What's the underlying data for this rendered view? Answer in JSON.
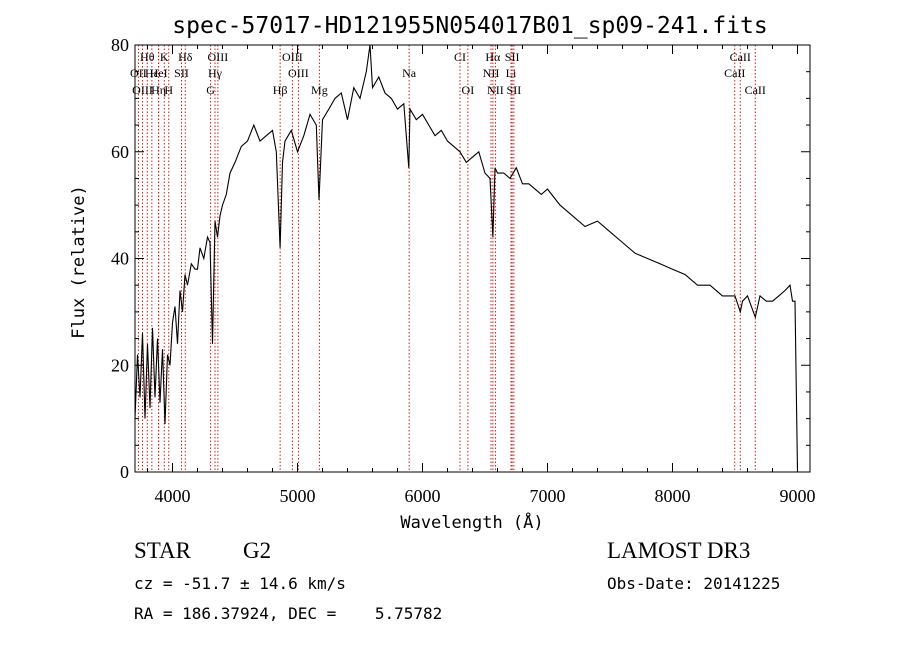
{
  "chart_data": {
    "type": "line",
    "title": "spec-57017-HD121955N054017B01_sp09-241.fits",
    "xlabel": "Wavelength (Å)",
    "ylabel": "Flux (relative)",
    "xlim": [
      3700,
      9100
    ],
    "ylim": [
      0,
      80
    ],
    "x_ticks": [
      4000,
      5000,
      6000,
      7000,
      8000,
      9000
    ],
    "y_ticks": [
      0,
      20,
      40,
      60,
      80
    ],
    "grid": false,
    "series": [
      {
        "name": "flux",
        "x": [
          3700,
          3720,
          3740,
          3760,
          3780,
          3800,
          3820,
          3840,
          3860,
          3880,
          3900,
          3920,
          3940,
          3960,
          3980,
          4000,
          4020,
          4040,
          4060,
          4080,
          4100,
          4120,
          4150,
          4180,
          4200,
          4220,
          4250,
          4280,
          4300,
          4320,
          4340,
          4360,
          4380,
          4400,
          4430,
          4460,
          4500,
          4550,
          4600,
          4650,
          4700,
          4750,
          4800,
          4830,
          4861,
          4880,
          4900,
          4950,
          5000,
          5050,
          5100,
          5150,
          5172,
          5200,
          5250,
          5300,
          5350,
          5400,
          5450,
          5500,
          5550,
          5580,
          5600,
          5650,
          5700,
          5750,
          5800,
          5850,
          5890,
          5900,
          5950,
          6000,
          6050,
          6100,
          6150,
          6200,
          6250,
          6300,
          6350,
          6400,
          6450,
          6500,
          6540,
          6563,
          6580,
          6600,
          6650,
          6700,
          6750,
          6800,
          6850,
          6900,
          6950,
          7000,
          7100,
          7200,
          7300,
          7400,
          7500,
          7600,
          7700,
          7800,
          7900,
          8000,
          8100,
          8200,
          8300,
          8400,
          8500,
          8542,
          8560,
          8600,
          8662,
          8700,
          8750,
          8800,
          8850,
          8900,
          8940,
          8960,
          8980,
          9000
        ],
        "y": [
          10,
          22,
          14,
          26,
          10,
          24,
          12,
          27,
          14,
          25,
          13,
          23,
          9,
          22,
          20,
          28,
          31,
          24,
          34,
          30,
          37,
          35,
          39,
          38,
          38,
          42,
          40,
          44,
          43,
          24,
          47,
          44,
          48,
          50,
          52,
          56,
          58,
          61,
          62,
          65,
          62,
          63,
          64,
          60,
          42,
          58,
          62,
          64,
          60,
          63,
          67,
          65,
          51,
          66,
          68,
          70,
          71,
          66,
          72,
          70,
          75,
          80,
          72,
          74,
          71,
          70,
          68,
          69,
          57,
          68,
          66,
          67,
          65,
          63,
          64,
          62,
          61,
          60,
          58,
          59,
          60,
          56,
          55,
          44,
          57,
          56,
          56,
          55,
          57,
          54,
          54,
          53,
          52,
          53,
          50,
          48,
          46,
          47,
          45,
          43,
          41,
          40,
          39,
          38,
          37,
          35,
          35,
          33,
          33,
          30,
          32,
          33,
          29,
          33,
          32,
          32,
          33,
          34,
          35,
          32,
          32,
          0
        ]
      }
    ],
    "line_markers": [
      {
        "label": "Hθ",
        "wavelength": 3798,
        "row": 0
      },
      {
        "label": "K",
        "wavelength": 3934,
        "row": 0
      },
      {
        "label": "Hδ",
        "wavelength": 4102,
        "row": 0
      },
      {
        "label": "OIII",
        "wavelength": 4363,
        "row": 0
      },
      {
        "label": "OIII",
        "wavelength": 4959,
        "row": 0
      },
      {
        "label": "CI",
        "wavelength": 6300,
        "row": 0
      },
      {
        "label": "Hα",
        "wavelength": 6563,
        "row": 0
      },
      {
        "label": "SII",
        "wavelength": 6717,
        "row": 0
      },
      {
        "label": "CaII",
        "wavelength": 8542,
        "row": 0
      },
      {
        "label": "OII",
        "wavelength": 3727,
        "row": 1
      },
      {
        "label": "Hε",
        "wavelength": 3835,
        "row": 1
      },
      {
        "label": "HeI",
        "wavelength": 3889,
        "row": 1
      },
      {
        "label": "SII",
        "wavelength": 4072,
        "row": 1
      },
      {
        "label": "Hγ",
        "wavelength": 4340,
        "row": 1
      },
      {
        "label": "OIII",
        "wavelength": 5007,
        "row": 1
      },
      {
        "label": "Na",
        "wavelength": 5893,
        "row": 1
      },
      {
        "label": "NII",
        "wavelength": 6548,
        "row": 1
      },
      {
        "label": "Li",
        "wavelength": 6708,
        "row": 1
      },
      {
        "label": "CaII",
        "wavelength": 8498,
        "row": 1
      },
      {
        "label": "OIII",
        "wavelength": 3760,
        "row": 2
      },
      {
        "label": "Hη",
        "wavelength": 3889,
        "row": 2
      },
      {
        "label": "H",
        "wavelength": 3970,
        "row": 2
      },
      {
        "label": "G",
        "wavelength": 4305,
        "row": 2
      },
      {
        "label": "Hβ",
        "wavelength": 4861,
        "row": 2
      },
      {
        "label": "Mg",
        "wavelength": 5175,
        "row": 2
      },
      {
        "label": "OI",
        "wavelength": 6363,
        "row": 2
      },
      {
        "label": "NII",
        "wavelength": 6583,
        "row": 2
      },
      {
        "label": "SII",
        "wavelength": 6731,
        "row": 2
      },
      {
        "label": "CaII",
        "wavelength": 8662,
        "row": 2
      }
    ],
    "colors": {
      "spectrum": "#000000",
      "line_marker": "#cc0000",
      "axis": "#000000"
    }
  },
  "info": {
    "object_class": "STAR",
    "subclass": "G2",
    "survey": "LAMOST DR3",
    "cz": "cz = -51.7 ± 14.6 km/s",
    "obs_date": "Obs-Date: 20141225",
    "coords": "RA = 186.37924, DEC =    5.75782"
  }
}
